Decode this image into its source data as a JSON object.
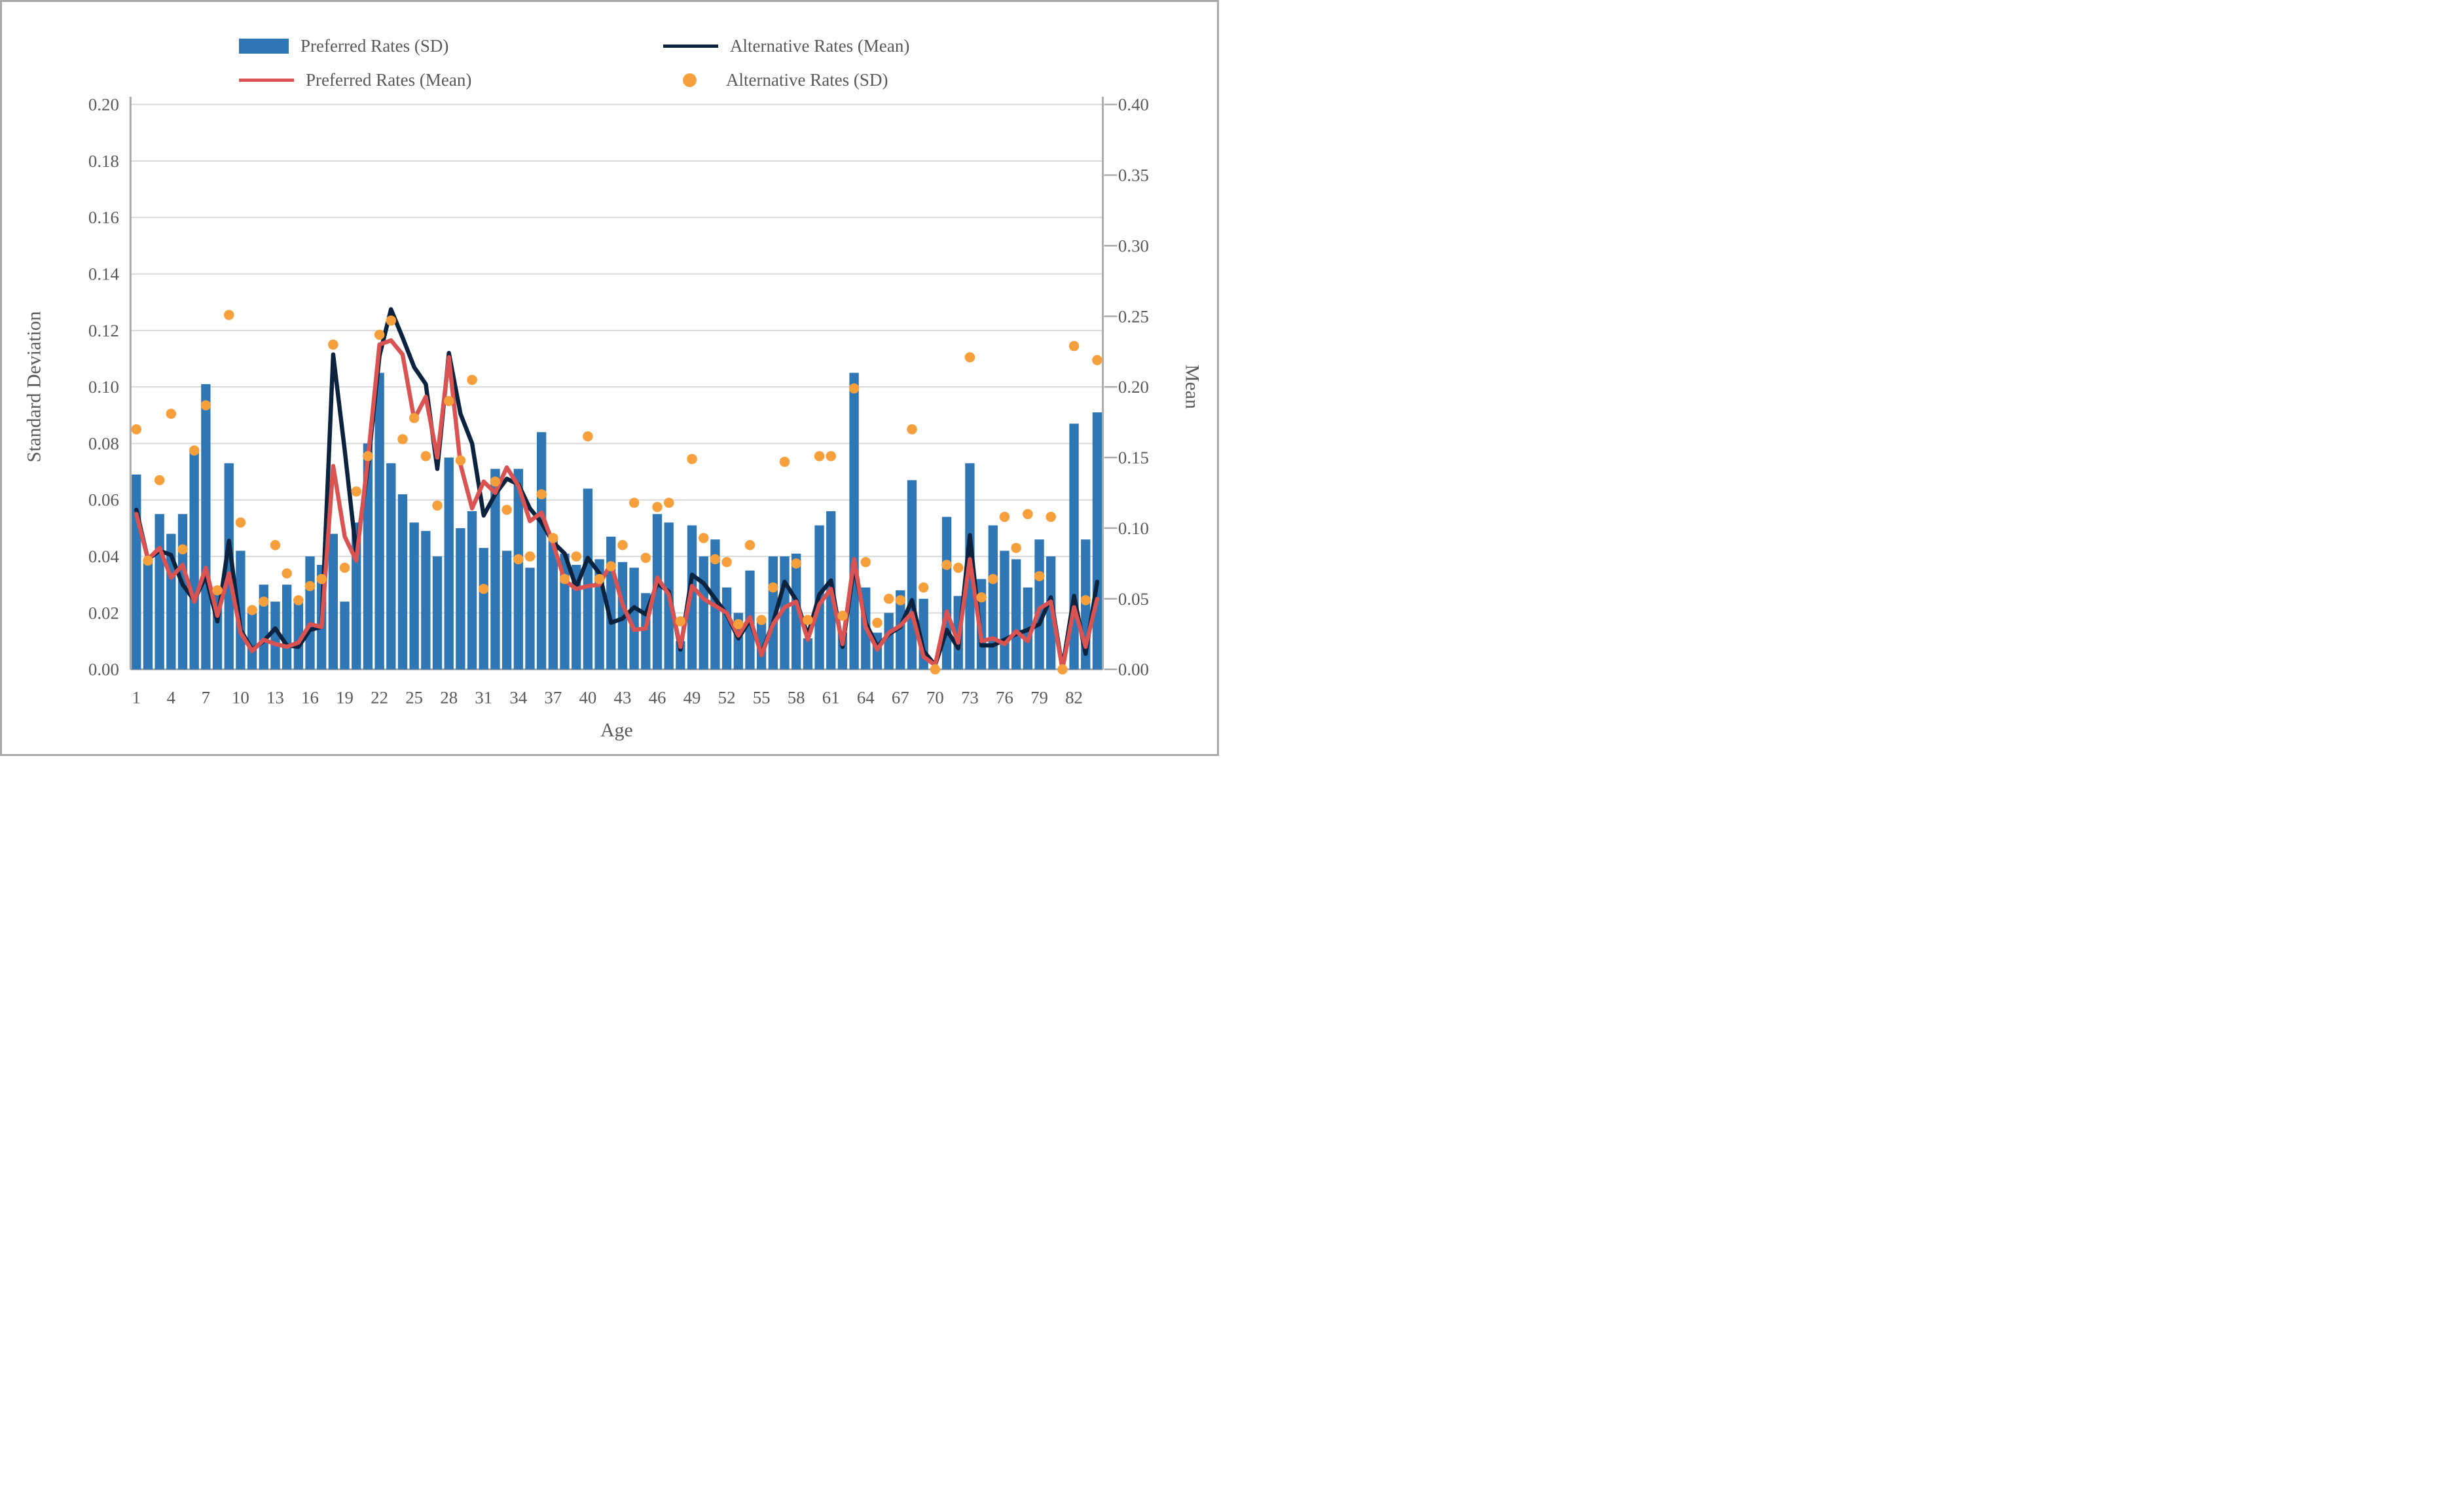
{
  "legend": {
    "item1": "Preferred Rates (SD)",
    "item2": "Preferred Rates (Mean)",
    "item3": "Alternative Rates (Mean)",
    "item4": "Alternative Rates (SD)"
  },
  "axes": {
    "left_title": "Standard Deviation",
    "right_title": "Mean",
    "x_title": "Age"
  },
  "chart_data": {
    "type": "combo",
    "x": {
      "label": "Age",
      "min": 1,
      "max": 84,
      "tick_labels": [
        1,
        4,
        7,
        10,
        13,
        16,
        19,
        22,
        25,
        28,
        31,
        34,
        37,
        40,
        43,
        46,
        49,
        52,
        55,
        58,
        61,
        64,
        67,
        70,
        73,
        76,
        79,
        82
      ]
    },
    "y_left": {
      "label": "Standard Deviation",
      "min": 0.0,
      "max": 0.2,
      "step": 0.02,
      "tick_labels": [
        "0.00",
        "0.02",
        "0.04",
        "0.06",
        "0.08",
        "0.10",
        "0.12",
        "0.14",
        "0.16",
        "0.18",
        "0.20"
      ]
    },
    "y_right": {
      "label": "Mean",
      "min": 0.0,
      "max": 0.4,
      "step": 0.05,
      "tick_labels": [
        "0.00",
        "0.05",
        "0.10",
        "0.15",
        "0.20",
        "0.25",
        "0.30",
        "0.35",
        "0.40"
      ]
    },
    "grid": true,
    "legend_position": "top",
    "series": [
      {
        "name": "Preferred Rates (SD)",
        "type": "bar",
        "axis": "left",
        "color": "#2E76B4",
        "values": [
          0.069,
          0.038,
          0.055,
          0.048,
          0.055,
          0.077,
          0.101,
          0.028,
          0.073,
          0.042,
          0.02,
          0.03,
          0.024,
          0.03,
          0.025,
          0.04,
          0.037,
          0.048,
          0.024,
          0.052,
          0.08,
          0.105,
          0.073,
          0.062,
          0.052,
          0.049,
          0.04,
          0.075,
          0.05,
          0.056,
          0.043,
          0.071,
          0.042,
          0.071,
          0.036,
          0.084,
          0.046,
          0.041,
          0.037,
          0.064,
          0.039,
          0.047,
          0.038,
          0.036,
          0.027,
          0.055,
          0.052,
          0.01,
          0.051,
          0.04,
          0.046,
          0.029,
          0.02,
          0.035,
          0.018,
          0.04,
          0.04,
          0.041,
          0.011,
          0.051,
          0.056,
          0.013,
          0.105,
          0.029,
          0.013,
          0.02,
          0.028,
          0.067,
          0.025,
          0.0,
          0.054,
          0.026,
          0.073,
          0.032,
          0.051,
          0.042,
          0.039,
          0.029,
          0.046,
          0.04,
          0.0,
          0.087,
          0.046,
          0.091
        ]
      },
      {
        "name": "Alternative Rates (Mean)",
        "type": "line",
        "axis": "right",
        "color": "#0C2340",
        "values": [
          0.113,
          0.078,
          0.084,
          0.081,
          0.06,
          0.049,
          0.066,
          0.034,
          0.091,
          0.028,
          0.014,
          0.02,
          0.029,
          0.017,
          0.016,
          0.028,
          0.03,
          0.223,
          0.155,
          0.082,
          0.144,
          0.222,
          0.255,
          0.235,
          0.214,
          0.202,
          0.142,
          0.224,
          0.181,
          0.16,
          0.109,
          0.124,
          0.135,
          0.131,
          0.114,
          0.104,
          0.09,
          0.082,
          0.058,
          0.079,
          0.068,
          0.033,
          0.036,
          0.044,
          0.039,
          0.061,
          0.055,
          0.014,
          0.067,
          0.061,
          0.05,
          0.039,
          0.022,
          0.035,
          0.011,
          0.033,
          0.062,
          0.049,
          0.024,
          0.053,
          0.063,
          0.016,
          0.073,
          0.033,
          0.016,
          0.025,
          0.03,
          0.049,
          0.013,
          0.003,
          0.028,
          0.015,
          0.095,
          0.017,
          0.017,
          0.021,
          0.025,
          0.028,
          0.032,
          0.051,
          0.001,
          0.052,
          0.011,
          0.062
        ]
      },
      {
        "name": "Preferred Rates (Mean)",
        "type": "line",
        "axis": "right",
        "color": "#D95352",
        "values": [
          0.11,
          0.078,
          0.086,
          0.065,
          0.074,
          0.048,
          0.072,
          0.038,
          0.068,
          0.026,
          0.013,
          0.021,
          0.018,
          0.016,
          0.019,
          0.032,
          0.03,
          0.144,
          0.094,
          0.077,
          0.149,
          0.23,
          0.233,
          0.223,
          0.177,
          0.193,
          0.15,
          0.221,
          0.145,
          0.114,
          0.133,
          0.125,
          0.143,
          0.13,
          0.105,
          0.111,
          0.089,
          0.063,
          0.057,
          0.059,
          0.06,
          0.075,
          0.046,
          0.028,
          0.029,
          0.065,
          0.053,
          0.016,
          0.059,
          0.05,
          0.045,
          0.04,
          0.024,
          0.037,
          0.01,
          0.032,
          0.044,
          0.048,
          0.021,
          0.046,
          0.057,
          0.018,
          0.078,
          0.03,
          0.014,
          0.026,
          0.031,
          0.04,
          0.009,
          0.003,
          0.041,
          0.019,
          0.078,
          0.02,
          0.022,
          0.018,
          0.027,
          0.02,
          0.043,
          0.048,
          0.0,
          0.044,
          0.016,
          0.05
        ]
      },
      {
        "name": "Alternative Rates (SD)",
        "type": "scatter",
        "axis": "right",
        "color": "#F6A03D",
        "values": [
          0.17,
          0.077,
          0.134,
          0.181,
          0.085,
          0.155,
          0.187,
          0.056,
          0.251,
          0.104,
          0.042,
          0.048,
          0.088,
          0.068,
          0.049,
          0.059,
          0.064,
          0.23,
          0.072,
          0.126,
          0.151,
          0.237,
          0.247,
          0.163,
          0.178,
          0.151,
          0.116,
          0.19,
          0.148,
          0.205,
          0.057,
          0.133,
          0.113,
          0.078,
          0.08,
          0.124,
          0.093,
          0.064,
          0.08,
          0.165,
          0.064,
          0.073,
          0.088,
          0.118,
          0.079,
          0.115,
          0.118,
          0.034,
          0.149,
          0.093,
          0.078,
          0.076,
          0.032,
          0.088,
          0.035,
          0.058,
          0.147,
          0.075,
          0.035,
          0.151,
          0.151,
          0.038,
          0.199,
          0.076,
          0.033,
          0.05,
          0.049,
          0.17,
          0.058,
          0.0,
          0.074,
          0.072,
          0.221,
          0.051,
          0.064,
          0.108,
          0.086,
          0.11,
          0.066,
          0.108,
          0.0,
          0.229,
          0.049,
          0.219
        ]
      }
    ],
    "style": {
      "grid_color": "#D9D9D9",
      "axis_color": "#ABABAB",
      "text_color": "#595959",
      "background": "#FFFFFF"
    }
  }
}
